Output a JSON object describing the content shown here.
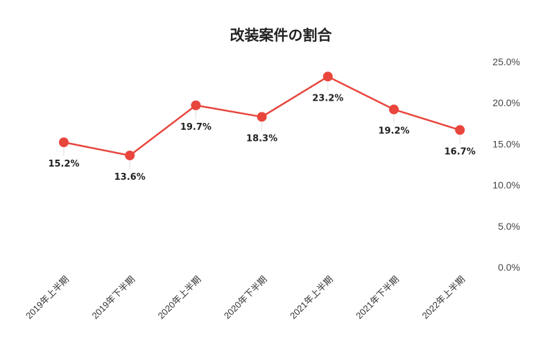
{
  "chart_data": {
    "type": "line",
    "title": "改装案件の割合",
    "xlabel": "",
    "ylabel": "",
    "categories": [
      "2019年上半期",
      "2019年下半期",
      "2020年上半期",
      "2020年下半期",
      "2021年上半期",
      "2021年下半期",
      "2022年上半期"
    ],
    "series": [
      {
        "values": [
          15.2,
          13.6,
          19.7,
          18.3,
          23.2,
          19.2,
          16.7
        ]
      }
    ],
    "data_labels": [
      "15.2%",
      "13.6%",
      "19.7%",
      "18.3%",
      "23.2%",
      "19.2%",
      "16.7%"
    ],
    "ylim": [
      0,
      25
    ],
    "y_ticks": [
      0,
      5,
      10,
      15,
      20,
      25
    ],
    "y_tick_labels": [
      "0.0%",
      "5.0%",
      "10.0%",
      "15.0%",
      "20.0%",
      "25.0%"
    ],
    "y_axis_position": "right",
    "grid": false,
    "legend": "none",
    "line_color": "#e8453c",
    "marker_color": "#e8453c"
  }
}
